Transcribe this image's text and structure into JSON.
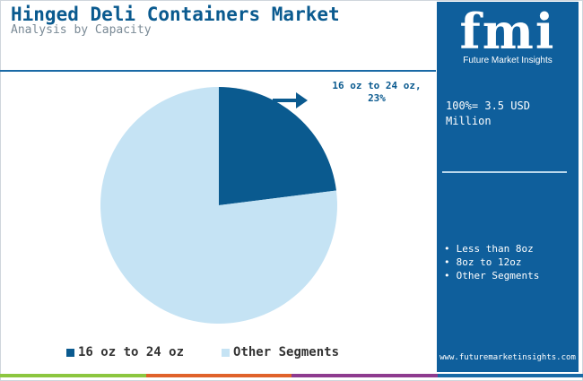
{
  "header": {
    "title": "Hinged Deli Containers Market",
    "subtitle": "Analysis by Capacity"
  },
  "sidebar": {
    "logo_mark": "fmi",
    "logo_text": "Future Market Insights",
    "total": "100%= 3.5 USD Million",
    "segments": [
      "Less than 8oz",
      "8oz to 12oz",
      "Other Segments"
    ],
    "url": "www.futuremarketinsights.com"
  },
  "colors": {
    "brand": "#0f5f9c",
    "highlight": "#0a5a8f",
    "other": "#c5e3f4"
  },
  "icons": {
    "callout_arrow": "arrow-right-icon"
  },
  "chart_data": {
    "type": "pie",
    "slices": [
      {
        "label": "16 oz to 24 oz",
        "value": 23,
        "color": "#0a5a8f"
      },
      {
        "label": "Other Segments",
        "value": 77,
        "color": "#c5e3f4"
      }
    ],
    "callout": "16 oz to 24 oz, 23%",
    "legend": [
      "16 oz to 24 oz",
      "Other Segments"
    ],
    "legend_position": "bottom"
  }
}
